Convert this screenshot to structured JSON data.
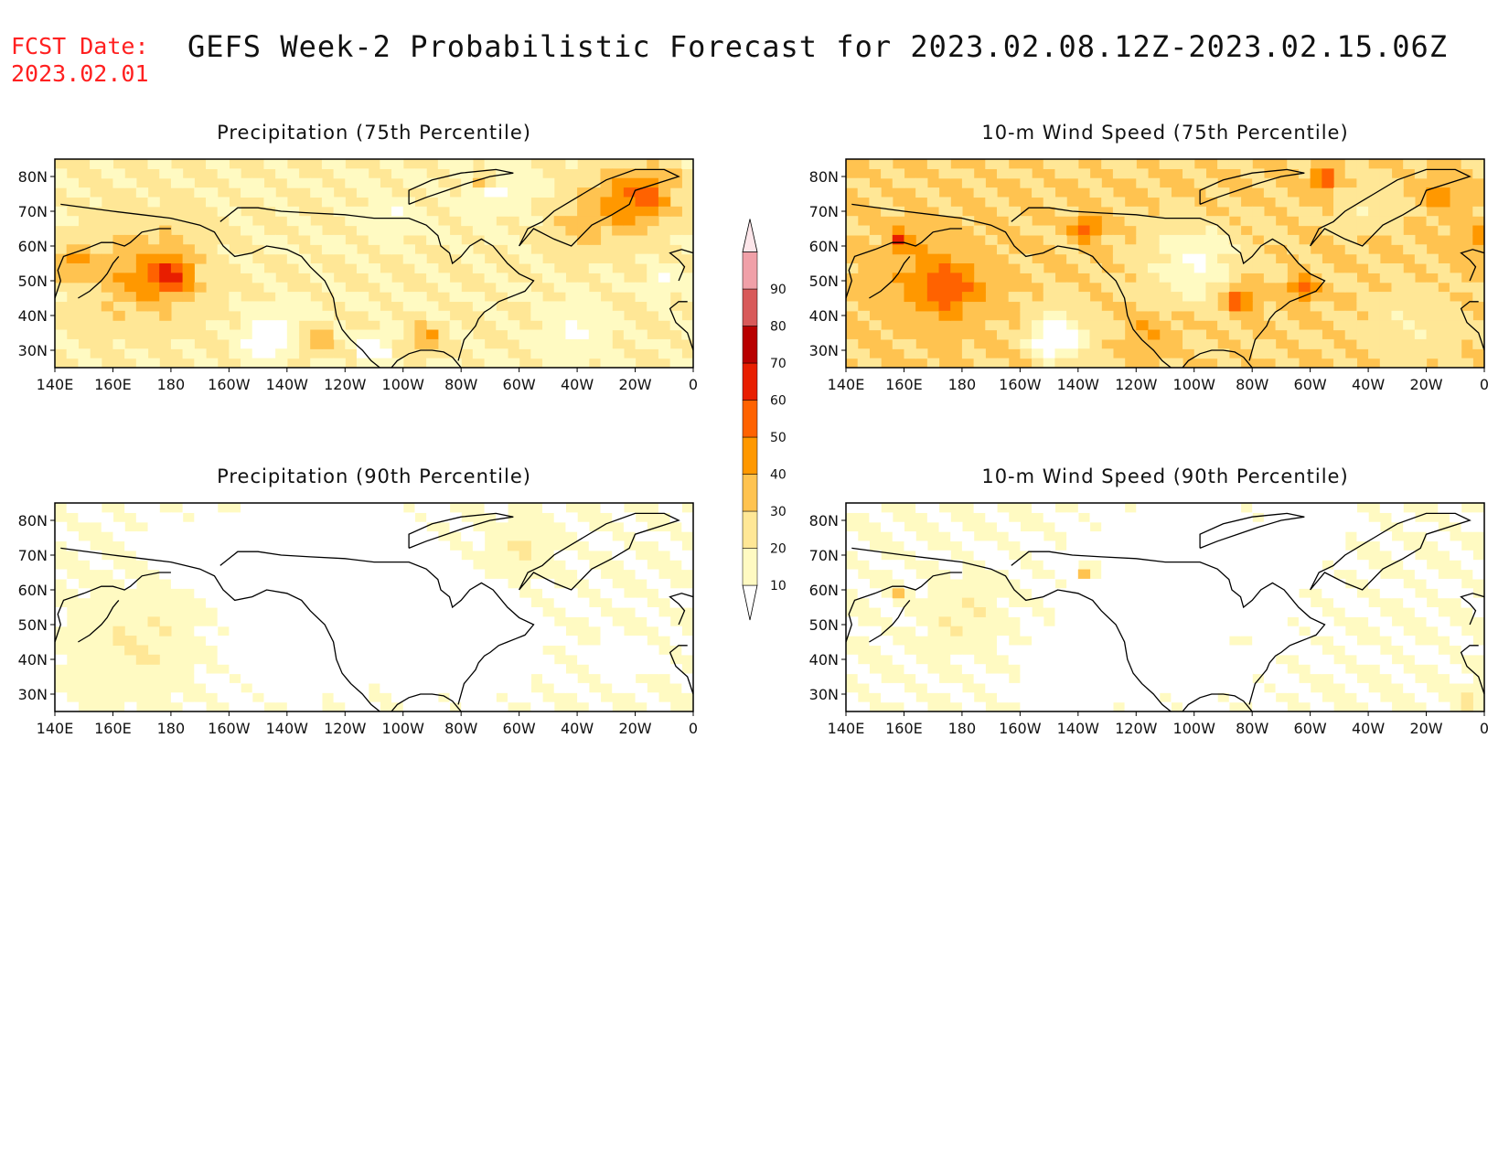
{
  "header": {
    "fcst_label": "FCST Date:",
    "fcst_date": "2023.02.01",
    "title": "GEFS Week-2 Probabilistic Forecast for 2023.02.08.12Z-2023.02.15.06Z"
  },
  "colors": {
    "frame": "#000000",
    "fcst_text": "#ff2020",
    "scale": [
      "#fffac2",
      "#ffe796",
      "#ffc350",
      "#ff9800",
      "#ff6200",
      "#e81e00",
      "#b80000",
      "#d85a5a",
      "#f0a0a8"
    ]
  },
  "chart_data": {
    "type": "heatmap",
    "x_ticks": [
      "140E",
      "160E",
      "180",
      "160W",
      "140W",
      "120W",
      "100W",
      "80W",
      "60W",
      "40W",
      "20W",
      "0"
    ],
    "y_ticks": [
      "30N",
      "40N",
      "50N",
      "60N",
      "70N",
      "80N"
    ],
    "lon_range": [
      140,
      360
    ],
    "lat_range": [
      25,
      85
    ],
    "panels": [
      {
        "title": "Precipitation (75th Percentile)",
        "base_level": 20,
        "blobs": [
          {
            "lon": 170,
            "lat": 52,
            "r": 18,
            "level": 40
          },
          {
            "lon": 180,
            "lat": 52,
            "r": 7,
            "level": 50
          },
          {
            "lon": 146,
            "lat": 55,
            "r": 6,
            "level": 40
          },
          {
            "lon": 215,
            "lat": 35,
            "r": 10,
            "level": 10
          },
          {
            "lon": 212,
            "lat": 32,
            "r": 6,
            "level": 0
          },
          {
            "lon": 335,
            "lat": 72,
            "r": 14,
            "level": 40
          },
          {
            "lon": 345,
            "lat": 76,
            "r": 9,
            "level": 40
          },
          {
            "lon": 287,
            "lat": 79,
            "r": 3,
            "level": 50
          },
          {
            "lon": 292,
            "lat": 77,
            "r": 10,
            "level": 10
          },
          {
            "lon": 250,
            "lat": 30,
            "r": 5,
            "level": 0
          },
          {
            "lon": 256,
            "lat": 68,
            "r": 8,
            "level": 10
          },
          {
            "lon": 230,
            "lat": 33,
            "r": 5,
            "level": 40
          },
          {
            "lon": 320,
            "lat": 35,
            "r": 10,
            "level": 10
          },
          {
            "lon": 318,
            "lat": 65,
            "r": 8,
            "level": 30
          },
          {
            "lon": 268,
            "lat": 34,
            "r": 5,
            "level": 40
          },
          {
            "lon": 350,
            "lat": 50,
            "r": 6,
            "level": 10
          }
        ]
      },
      {
        "title": "10-m Wind Speed (75th Percentile)",
        "base_level": 30,
        "blobs": [
          {
            "lon": 170,
            "lat": 50,
            "r": 20,
            "level": 40
          },
          {
            "lon": 175,
            "lat": 48,
            "r": 9,
            "level": 50
          },
          {
            "lon": 215,
            "lat": 35,
            "r": 11,
            "level": 10
          },
          {
            "lon": 210,
            "lat": 32,
            "r": 5,
            "level": 0
          },
          {
            "lon": 260,
            "lat": 55,
            "r": 15,
            "level": 10
          },
          {
            "lon": 275,
            "lat": 45,
            "r": 5,
            "level": 60
          },
          {
            "lon": 297,
            "lat": 48,
            "r": 4,
            "level": 60
          },
          {
            "lon": 305,
            "lat": 79,
            "r": 4,
            "level": 60
          },
          {
            "lon": 320,
            "lat": 72,
            "r": 10,
            "level": 20
          },
          {
            "lon": 335,
            "lat": 37,
            "r": 14,
            "level": 20
          },
          {
            "lon": 345,
            "lat": 75,
            "r": 6,
            "level": 50
          },
          {
            "lon": 360,
            "lat": 60,
            "r": 10,
            "level": 40
          },
          {
            "lon": 158,
            "lat": 62,
            "r": 3,
            "level": 60
          },
          {
            "lon": 223,
            "lat": 65,
            "r": 4,
            "level": 60
          },
          {
            "lon": 245,
            "lat": 35,
            "r": 8,
            "level": 40
          }
        ]
      },
      {
        "title": "Precipitation (90th Percentile)",
        "base_level": 10,
        "blobs": [
          {
            "lon": 230,
            "lat": 60,
            "r": 35,
            "level": 0
          },
          {
            "lon": 215,
            "lat": 38,
            "r": 8,
            "level": 0
          },
          {
            "lon": 285,
            "lat": 45,
            "r": 20,
            "level": 0
          },
          {
            "lon": 170,
            "lat": 45,
            "r": 20,
            "level": 20
          },
          {
            "lon": 300,
            "lat": 72,
            "r": 10,
            "level": 20
          },
          {
            "lon": 335,
            "lat": 40,
            "r": 8,
            "level": 0
          },
          {
            "lon": 180,
            "lat": 72,
            "r": 10,
            "level": 0
          }
        ]
      },
      {
        "title": "10-m Wind Speed (90th Percentile)",
        "base_level": 10,
        "blobs": [
          {
            "lon": 255,
            "lat": 58,
            "r": 35,
            "level": 0
          },
          {
            "lon": 215,
            "lat": 35,
            "r": 12,
            "level": 0
          },
          {
            "lon": 180,
            "lat": 52,
            "r": 12,
            "level": 20
          },
          {
            "lon": 300,
            "lat": 77,
            "r": 10,
            "level": 0
          },
          {
            "lon": 223,
            "lat": 65,
            "r": 3,
            "level": 40
          },
          {
            "lon": 158,
            "lat": 60,
            "r": 2,
            "level": 40
          },
          {
            "lon": 275,
            "lat": 45,
            "r": 4,
            "level": 20
          },
          {
            "lon": 355,
            "lat": 28,
            "r": 5,
            "level": 20
          }
        ]
      }
    ],
    "colorbar": {
      "levels": [
        10,
        20,
        30,
        40,
        50,
        60,
        70,
        80,
        90
      ]
    }
  }
}
